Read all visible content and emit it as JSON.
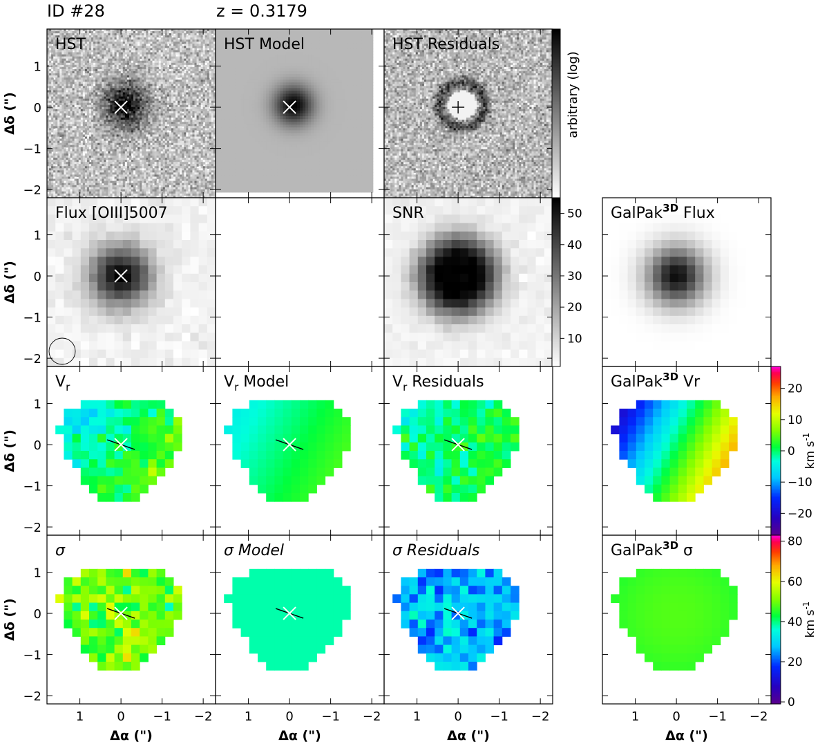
{
  "header": {
    "id_label": "ID #28",
    "redshift_label": "z = 0.3179"
  },
  "chart_data": {
    "type": "heatmap",
    "axes": {
      "xlabel": "Δα (\")",
      "ylabel": "Δδ (\")",
      "xlim": [
        1.8,
        -2.3
      ],
      "ylim": [
        -2.2,
        1.9
      ],
      "xticks": [
        1,
        0,
        -1,
        -2
      ],
      "yticks": [
        -2,
        -1,
        0,
        1
      ]
    },
    "panels": [
      {
        "key": "hst",
        "label": "HST",
        "row": 0,
        "col": 0,
        "style": "noisy-gray",
        "marker": "x-white"
      },
      {
        "key": "hst_model",
        "label": "HST Model",
        "row": 0,
        "col": 1,
        "style": "smooth-gray",
        "marker": "x-white"
      },
      {
        "key": "hst_resid",
        "label": "HST Residuals",
        "row": 0,
        "col": 2,
        "style": "resid-gray",
        "marker": "plus-black"
      },
      {
        "key": "flux",
        "label": "Flux [OIII]5007",
        "row": 1,
        "col": 0,
        "style": "pix-gray",
        "marker": "x-white",
        "beam": true
      },
      {
        "key": "empty",
        "label": "",
        "row": 1,
        "col": 1,
        "style": "empty"
      },
      {
        "key": "snr",
        "label": "SNR",
        "row": 1,
        "col": 2,
        "style": "pix-snr"
      },
      {
        "key": "gp_flux",
        "label": "GalPak3D Flux",
        "label_base": "GalPak",
        "label_sup": "3D",
        "label_tail": "Flux",
        "row": 1,
        "col": 3,
        "style": "gp-gray"
      },
      {
        "key": "vr",
        "label": "Vr",
        "row": 2,
        "col": 0,
        "style": "vel-noisy",
        "marker": "x-white",
        "pa": true
      },
      {
        "key": "vr_model",
        "label": "Vr Model",
        "row": 2,
        "col": 1,
        "style": "vel-model",
        "marker": "x-white",
        "pa": true
      },
      {
        "key": "vr_resid",
        "label": "Vr Residuals",
        "row": 2,
        "col": 2,
        "style": "vel-resid",
        "marker": "x-white",
        "pa": true
      },
      {
        "key": "gp_vr",
        "label": "GalPak3D Vr",
        "row": 2,
        "col": 3,
        "style": "vel-gp"
      },
      {
        "key": "sig",
        "label": "σ",
        "row": 3,
        "col": 0,
        "style": "sig-noisy",
        "marker": "x-white",
        "pa": true
      },
      {
        "key": "sig_model",
        "label": "σ Model",
        "row": 3,
        "col": 1,
        "style": "sig-model",
        "marker": "x-white",
        "pa": true
      },
      {
        "key": "sig_resid",
        "label": "σ Residuals",
        "row": 3,
        "col": 2,
        "style": "sig-resid",
        "marker": "x-white",
        "pa": true
      },
      {
        "key": "gp_sig",
        "label": "GalPak3D σ",
        "row": 3,
        "col": 3,
        "style": "sig-gp"
      }
    ],
    "colorbars": [
      {
        "key": "cb_hst",
        "label": "arbitrary (log)",
        "ticks": [],
        "cmap": "gray",
        "range": [
          0,
          1
        ]
      },
      {
        "key": "cb_snr",
        "label": "",
        "ticks": [
          10,
          20,
          30,
          40,
          50
        ],
        "cmap": "gray",
        "range": [
          1,
          55
        ]
      },
      {
        "key": "cb_vr",
        "label": "km s-1",
        "ticks": [
          -20,
          -10,
          0,
          10,
          20
        ],
        "cmap": "rainbow",
        "range": [
          -27,
          27
        ]
      },
      {
        "key": "cb_sig",
        "label": "km s-1",
        "ticks": [
          0,
          20,
          40,
          60,
          80
        ],
        "cmap": "rainbow",
        "range": [
          -1,
          83
        ]
      }
    ]
  }
}
